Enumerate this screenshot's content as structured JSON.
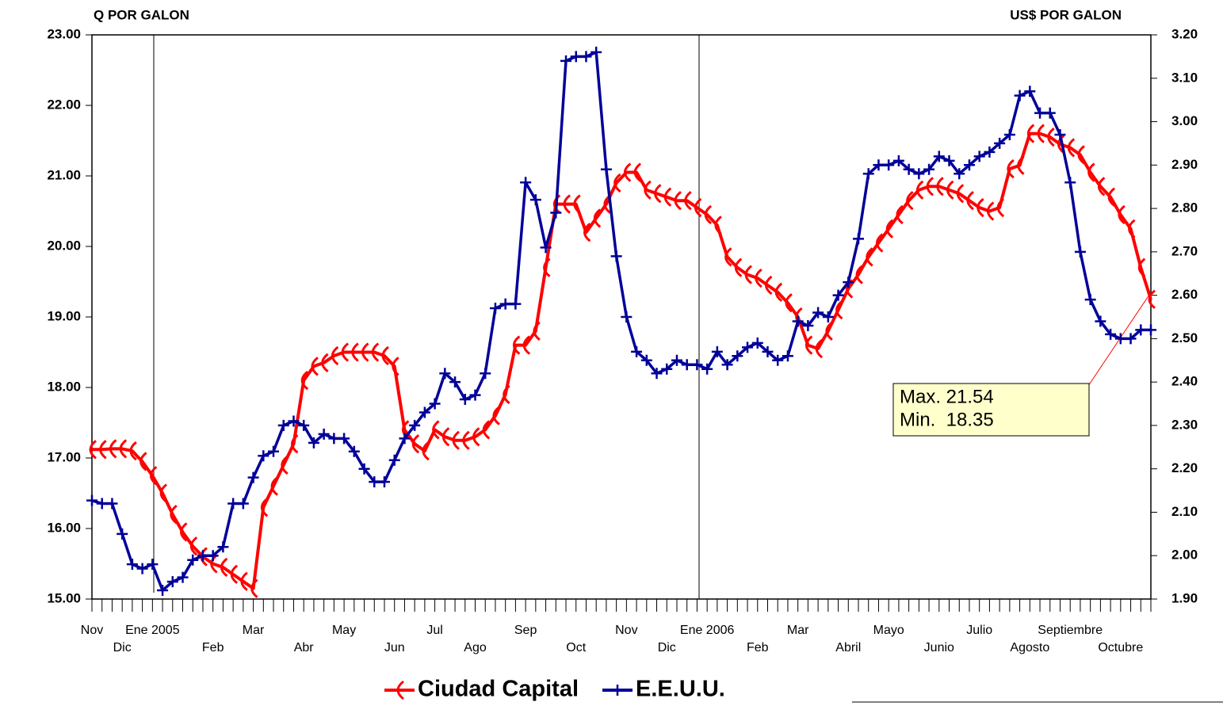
{
  "chart_data": {
    "type": "line",
    "y_axis_label": "Q POR GALON",
    "y2_axis_label": "US$ POR GALON",
    "categories": [
      "Nov",
      null,
      null,
      "Dic",
      null,
      null,
      "Ene 2005",
      null,
      null,
      null,
      null,
      null,
      "Feb",
      null,
      null,
      null,
      "Mar",
      null,
      null,
      null,
      null,
      "Abr",
      null,
      null,
      null,
      "May",
      null,
      null,
      null,
      null,
      "Jun",
      null,
      null,
      null,
      "Jul",
      null,
      null,
      null,
      "Ago",
      null,
      null,
      null,
      null,
      "Sep",
      null,
      null,
      null,
      null,
      "Oct",
      null,
      null,
      null,
      null,
      "Nov",
      null,
      null,
      null,
      "Dic",
      null,
      null,
      null,
      "Ene 2006",
      null,
      null,
      null,
      null,
      "Feb",
      null,
      null,
      null,
      "Mar",
      null,
      null,
      null,
      null,
      "Abril",
      null,
      null,
      null,
      "Mayo",
      null,
      null,
      null,
      null,
      "Junio",
      null,
      null,
      null,
      "Julio",
      null,
      null,
      null,
      null,
      "Agosto",
      null,
      null,
      null,
      "Septiembre",
      null,
      null,
      null,
      null,
      "Octubre",
      null,
      null,
      null
    ],
    "series": [
      {
        "name": "Ciudad Capital",
        "color": "#ff0000",
        "axis": "y",
        "values": [
          17.12,
          17.12,
          17.13,
          17.13,
          17.1,
          16.95,
          16.75,
          16.5,
          16.2,
          15.95,
          15.75,
          15.6,
          15.5,
          15.45,
          15.35,
          15.25,
          15.15,
          16.3,
          16.6,
          16.9,
          17.2,
          18.1,
          18.3,
          18.35,
          18.45,
          18.5,
          18.5,
          18.5,
          18.5,
          18.45,
          18.3,
          17.4,
          17.2,
          17.1,
          17.4,
          17.3,
          17.25,
          17.25,
          17.3,
          17.4,
          17.6,
          17.9,
          18.6,
          18.6,
          18.8,
          19.7,
          20.6,
          20.6,
          20.6,
          20.2,
          20.4,
          20.6,
          20.9,
          21.05,
          21.05,
          20.8,
          20.75,
          20.7,
          20.65,
          20.65,
          20.55,
          20.45,
          20.3,
          19.85,
          19.7,
          19.6,
          19.55,
          19.45,
          19.35,
          19.2,
          19.0,
          18.6,
          18.55,
          18.8,
          19.1,
          19.4,
          19.6,
          19.85,
          20.05,
          20.25,
          20.45,
          20.65,
          20.8,
          20.85,
          20.85,
          20.8,
          20.75,
          20.65,
          20.55,
          20.5,
          20.55,
          21.1,
          21.15,
          21.6,
          21.6,
          21.55,
          21.45,
          21.4,
          21.3,
          21.05,
          20.85,
          20.7,
          20.45,
          20.25,
          19.7,
          19.25
        ]
      },
      {
        "name": "E.E.U.U.",
        "color": "#000099",
        "axis": "y2",
        "values": [
          2.127,
          2.12,
          2.12,
          2.05,
          1.98,
          1.97,
          1.98,
          1.92,
          1.94,
          1.95,
          1.99,
          2.0,
          2.0,
          2.02,
          2.12,
          2.12,
          2.18,
          2.23,
          2.24,
          2.3,
          2.31,
          2.3,
          2.26,
          2.28,
          2.27,
          2.27,
          2.24,
          2.2,
          2.17,
          2.17,
          2.22,
          2.27,
          2.3,
          2.33,
          2.35,
          2.42,
          2.4,
          2.36,
          2.37,
          2.42,
          2.57,
          2.58,
          2.58,
          2.86,
          2.82,
          2.71,
          2.79,
          3.14,
          3.15,
          3.15,
          3.16,
          2.89,
          2.69,
          2.55,
          2.47,
          2.45,
          2.42,
          2.43,
          2.45,
          2.44,
          2.44,
          2.43,
          2.47,
          2.44,
          2.46,
          2.48,
          2.49,
          2.47,
          2.45,
          2.46,
          2.54,
          2.53,
          2.56,
          2.55,
          2.6,
          2.63,
          2.73,
          2.88,
          2.9,
          2.9,
          2.91,
          2.89,
          2.88,
          2.89,
          2.92,
          2.91,
          2.88,
          2.9,
          2.92,
          2.93,
          2.95,
          2.97,
          3.06,
          3.07,
          3.02,
          3.02,
          2.97,
          2.86,
          2.7,
          2.59,
          2.54,
          2.51,
          2.5,
          2.5,
          2.52,
          2.52
        ]
      }
    ],
    "ylim": [
      15,
      23
    ],
    "yticks": [
      {
        "value": 15,
        "label": "15.00"
      },
      {
        "value": 16,
        "label": "16.00"
      },
      {
        "value": 17,
        "label": "17.00"
      },
      {
        "value": 18,
        "label": "18.00"
      },
      {
        "value": 19,
        "label": "19.00"
      },
      {
        "value": 20,
        "label": "20.00"
      },
      {
        "value": 21,
        "label": "21.00"
      },
      {
        "value": 22,
        "label": "22.00"
      },
      {
        "value": 23,
        "label": "23.00"
      }
    ],
    "y2lim": [
      1.9,
      3.2
    ],
    "y2ticks": [
      {
        "value": 1.9,
        "label": "1.90"
      },
      {
        "value": 2.0,
        "label": "2.00"
      },
      {
        "value": 2.1,
        "label": "2.10"
      },
      {
        "value": 2.2,
        "label": "2.20"
      },
      {
        "value": 2.3,
        "label": "2.30"
      },
      {
        "value": 2.4,
        "label": "2.40"
      },
      {
        "value": 2.5,
        "label": "2.50"
      },
      {
        "value": 2.6,
        "label": "2.60"
      },
      {
        "value": 2.7,
        "label": "2.70"
      },
      {
        "value": 2.8,
        "label": "2.80"
      },
      {
        "value": 2.9,
        "label": "2.90"
      },
      {
        "value": 3.0,
        "label": "3.00"
      },
      {
        "value": 3.1,
        "label": "3.10"
      },
      {
        "value": 3.2,
        "label": "3.20"
      }
    ],
    "annotations": [
      "Max. 21.54",
      "Min.  18.35"
    ],
    "legend": "bottom"
  }
}
